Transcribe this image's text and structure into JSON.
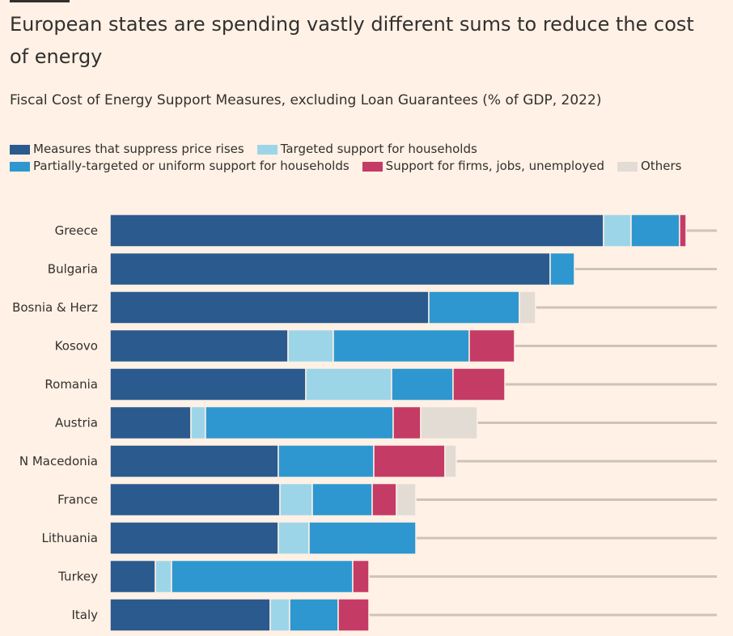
{
  "title": "European states are spending vastly different sums to reduce the cost of energy",
  "subtitle": "Fiscal Cost of Energy Support Measures, excluding Loan Guarantees (% of GDP, 2022)",
  "colors": {
    "background": "#fff1e5",
    "price": "#2b5a8e",
    "targeted": "#9dd5e8",
    "partial": "#2f97cf",
    "firms": "#c43b66",
    "others": "#e3dcd5",
    "track": "#cec3b8"
  },
  "legend": [
    {
      "key": "price",
      "label": "Measures that suppress price rises"
    },
    {
      "key": "targeted",
      "label": "Targeted support for households"
    },
    {
      "key": "partial",
      "label": "Partially-targeted or uniform support for households"
    },
    {
      "key": "firms",
      "label": "Support for firms, jobs, unemployed"
    },
    {
      "key": "others",
      "label": "Others"
    }
  ],
  "chart_data": {
    "type": "bar",
    "orientation": "horizontal",
    "stacked": true,
    "units": "% of GDP",
    "categories": [
      "Greece",
      "Bulgaria",
      "Bosnia & Herz",
      "Kosovo",
      "Romania",
      "Austria",
      "N Macedonia",
      "France",
      "Lithuania",
      "Turkey",
      "Italy"
    ],
    "xlim": [
      0,
      4.5
    ],
    "series": [
      {
        "name": "Measures that suppress price rises",
        "key": "price",
        "values": [
          3.05,
          2.72,
          1.97,
          1.1,
          1.21,
          0.5,
          1.04,
          1.05,
          1.04,
          0.28,
          0.99
        ]
      },
      {
        "name": "Targeted support for households",
        "key": "targeted",
        "values": [
          0.17,
          0.0,
          0.0,
          0.28,
          0.53,
          0.09,
          0.0,
          0.2,
          0.19,
          0.1,
          0.12
        ]
      },
      {
        "name": "Partially-targeted or uniform support for households",
        "key": "partial",
        "values": [
          0.3,
          0.15,
          0.56,
          0.84,
          0.38,
          1.16,
          0.59,
          0.37,
          0.66,
          1.12,
          0.3
        ]
      },
      {
        "name": "Support for firms, jobs, unemployed",
        "key": "firms",
        "values": [
          0.04,
          0.0,
          0.0,
          0.28,
          0.32,
          0.17,
          0.44,
          0.15,
          0.0,
          0.1,
          0.19
        ]
      },
      {
        "name": "Others",
        "key": "others",
        "values": [
          0.0,
          0.0,
          0.1,
          0.0,
          0.0,
          0.35,
          0.07,
          0.12,
          0.0,
          0.0,
          0.0
        ]
      }
    ],
    "gridlines": false,
    "legend_position": "top"
  }
}
